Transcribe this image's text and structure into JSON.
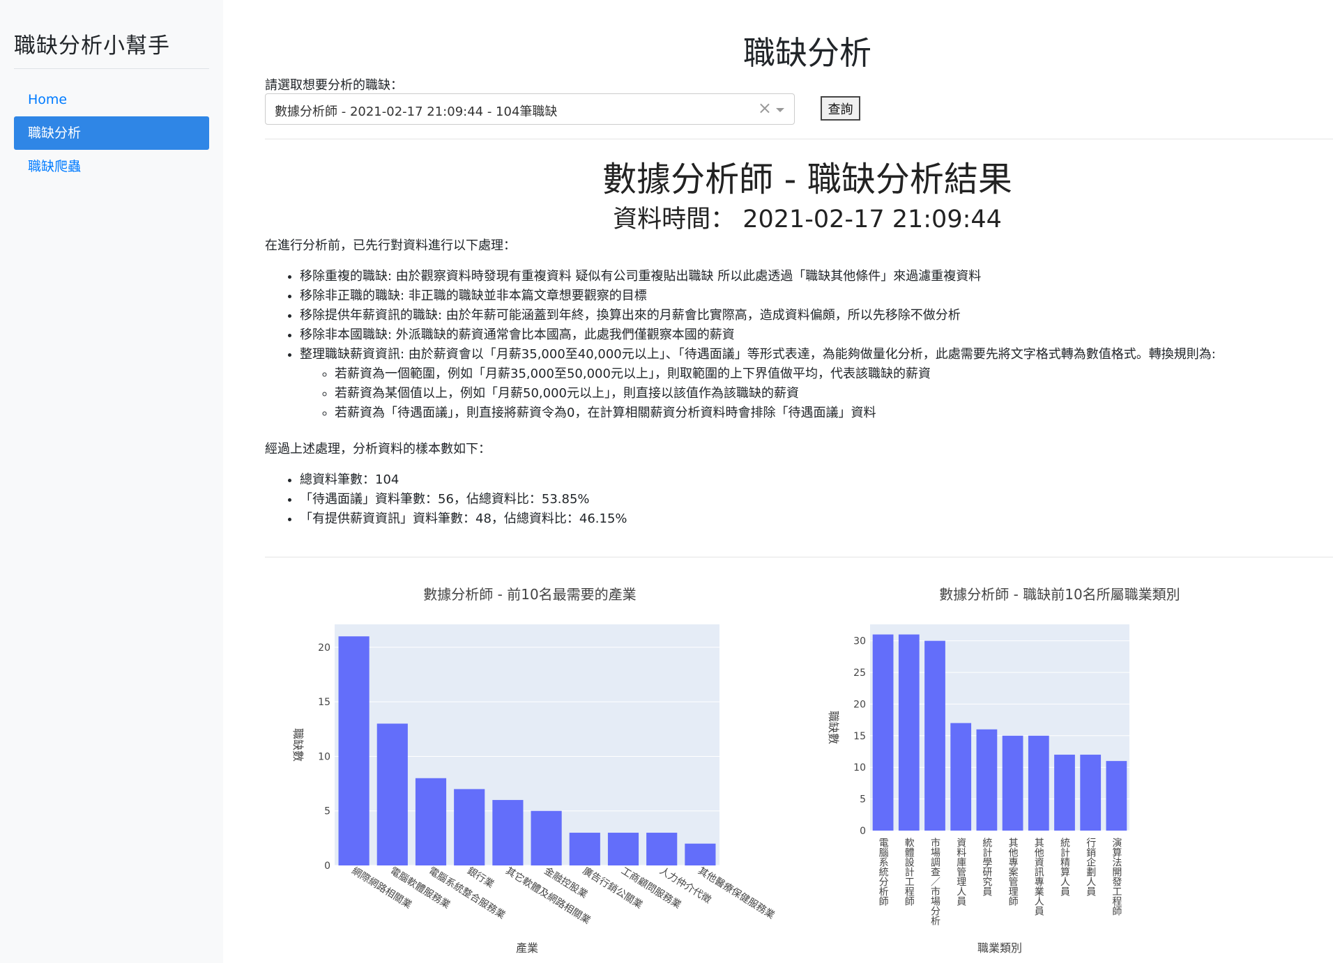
{
  "sidebar": {
    "brand": "職缺分析小幫手",
    "items": [
      {
        "label": "Home",
        "active": false
      },
      {
        "label": "職缺分析",
        "active": true
      },
      {
        "label": "職缺爬蟲",
        "active": false
      }
    ]
  },
  "header": {
    "title": "職缺分析"
  },
  "selector": {
    "label": "請選取想要分析的職缺：",
    "value": "數據分析師 - 2021-02-17 21:09:44 - 104筆職缺",
    "clear_icon": "×",
    "button_label": "查詢"
  },
  "result": {
    "title": "數據分析師 - 職缺分析結果",
    "data_time": "資料時間： 2021-02-17 21:09:44",
    "intro": "在進行分析前，已先行對資料進行以下處理：",
    "steps": [
      "移除重複的職缺: 由於觀察資料時發現有重複資料 疑似有公司重複貼出職缺 所以此處透過「職缺其他條件」來過濾重複資料",
      "移除非正職的職缺: 非正職的職缺並非本篇文章想要觀察的目標",
      "移除提供年薪資訊的職缺: 由於年薪可能涵蓋到年終，換算出來的月薪會比實際高，造成資料偏頗，所以先移除不做分析",
      "移除非本國職缺: 外派職缺的薪資通常會比本國高，此處我們僅觀察本國的薪資",
      "整理職缺薪資資訊: 由於薪資會以「月薪35,000至40,000元以上」、「待遇面議」等形式表達，為能夠做量化分析，此處需要先將文字格式轉為數值格式。轉換規則為:"
    ],
    "rules": [
      "若薪資為一個範圍，例如「月薪35,000至50,000元以上」，則取範圍的上下界值做平均，代表該職缺的薪資",
      "若薪資為某個值以上，例如「月薪50,000元以上」，則直接以該值作為該職缺的薪資",
      "若薪資為「待遇面議」，則直接將薪資令為0，在計算相關薪資分析資料時會排除「待遇面議」資料"
    ],
    "sample_intro": "經過上述處理，分析資料的樣本數如下：",
    "samples": [
      "總資料筆數：104",
      "「待遇面議」資料筆數：56，佔總資料比：53.85%",
      "「有提供薪資資訊」資料筆數：48，佔總資料比：46.15%"
    ]
  },
  "chart_data": [
    {
      "type": "bar",
      "title": "數據分析師 - 前10名最需要的產業",
      "xlabel": "產業",
      "ylabel": "職缺數",
      "categories": [
        "網際網路相關業",
        "電腦軟體服務業",
        "電腦系統整合服務業",
        "銀行業",
        "其它軟體及網路相關業",
        "金融控股業",
        "廣告行銷公關業",
        "工商顧問服務業",
        "人力仲介代徵",
        "其他醫療保健服務業"
      ],
      "values": [
        21,
        13,
        8,
        7,
        6,
        5,
        3,
        3,
        3,
        2
      ],
      "yticks": [
        0,
        5,
        10,
        15,
        20
      ],
      "ylim": [
        0,
        22.1
      ],
      "color": "#636efa"
    },
    {
      "type": "bar",
      "title": "數據分析師 - 職缺前10名所屬職業類別",
      "xlabel": "職業類別",
      "ylabel": "職缺數",
      "categories": [
        "電腦系統分析師",
        "軟體設計工程師",
        "市場調查／市場分析",
        "資料庫管理人員",
        "統計學研究員",
        "其他專案管理師",
        "其他資訊專業人員",
        "統計精算人員",
        "行銷企劃人員",
        "演算法開發工程師"
      ],
      "values": [
        31,
        31,
        30,
        17,
        16,
        15,
        15,
        12,
        12,
        11
      ],
      "yticks": [
        0,
        5,
        10,
        15,
        20,
        25,
        30
      ],
      "ylim": [
        0,
        32.6
      ],
      "color": "#636efa"
    }
  ]
}
